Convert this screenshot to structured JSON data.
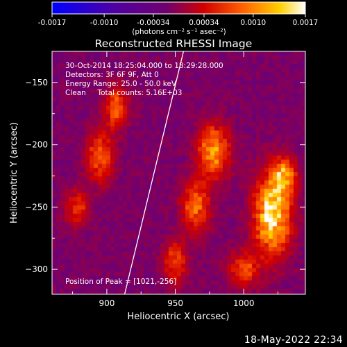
{
  "chart_data": {
    "type": "heatmap",
    "title": "Reconstructed RHESSI Image",
    "xlabel": "Heliocentric X (arcsec)",
    "ylabel": "Heliocentric Y (arcsec)",
    "xlim": [
      860,
      1045
    ],
    "ylim": [
      -320,
      -125
    ],
    "x_ticks": [
      900,
      950,
      1000
    ],
    "y_ticks": [
      -150,
      -200,
      -250,
      -300
    ],
    "colorbar": {
      "range": [
        -0.0017,
        0.0017
      ],
      "tick_values": [
        -0.0017,
        -0.001,
        -0.00034,
        0.00034,
        0.001,
        0.0017
      ],
      "tick_labels": [
        "-0.0017",
        "-0.0010",
        "-0.00034",
        "0.00034",
        "0.0010",
        "0.0017"
      ],
      "units": "(photons cm⁻² s⁻¹ asec⁻²)",
      "colors": [
        "#0000ff",
        "#4a00a0",
        "#7a0080",
        "#c00000",
        "#ff5000",
        "#ffb000",
        "#ffff80",
        "#ffffff"
      ]
    },
    "annotations": [
      "30-Oct-2014 18:25:04.000 to 18:29:28.000",
      "Detectors: 3F 6F 9F, Att 0",
      "Energy Range: 25.0 - 50.0 keV",
      "Clean     Total counts: 5.16E+03"
    ],
    "peak_label": "Position of Peak = [1021,-256]",
    "peak_position": [
      1021,
      -256
    ],
    "sources": [
      {
        "x": 907,
        "y": -170,
        "sx": 6,
        "sy": 12,
        "amp": 0.0009
      },
      {
        "x": 895,
        "y": -210,
        "sx": 7,
        "sy": 14,
        "amp": 0.0009
      },
      {
        "x": 878,
        "y": -250,
        "sx": 6,
        "sy": 10,
        "amp": 0.0007
      },
      {
        "x": 978,
        "y": -205,
        "sx": 8,
        "sy": 15,
        "amp": 0.0012
      },
      {
        "x": 965,
        "y": -250,
        "sx": 7,
        "sy": 14,
        "amp": 0.001
      },
      {
        "x": 950,
        "y": -295,
        "sx": 6,
        "sy": 12,
        "amp": 0.0008
      },
      {
        "x": 1021,
        "y": -256,
        "sx": 9,
        "sy": 22,
        "amp": 0.0017
      },
      {
        "x": 1030,
        "y": -225,
        "sx": 6,
        "sy": 10,
        "amp": 0.0011
      },
      {
        "x": 1000,
        "y": -300,
        "sx": 8,
        "sy": 10,
        "amp": 0.0008
      }
    ],
    "limb_line": {
      "x": [
        913,
        956
      ],
      "y": [
        -320,
        -125
      ]
    }
  },
  "footer": {
    "date": "18-May-2022 22:34"
  }
}
